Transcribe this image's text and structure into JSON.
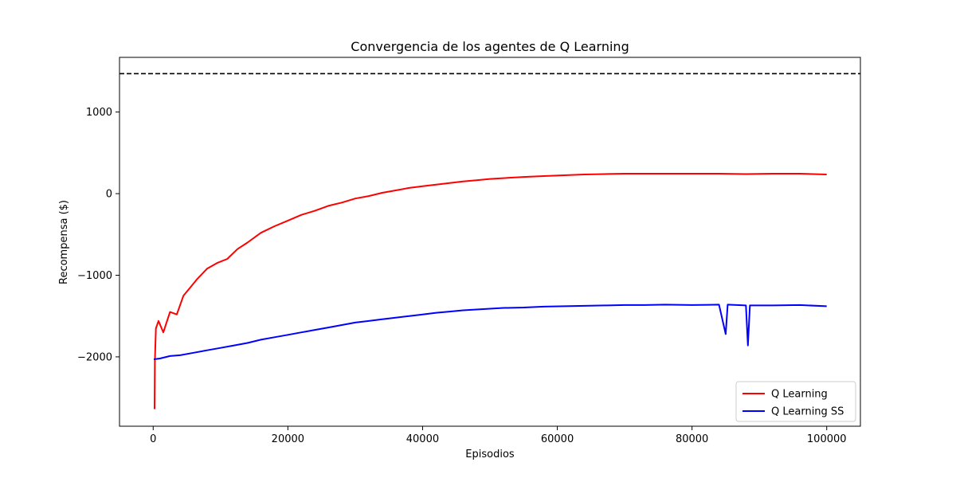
{
  "chart_data": {
    "type": "line",
    "title": "Convergencia de los agentes de Q Learning",
    "xlabel": "Episodios",
    "ylabel": "Recompensa ($)",
    "xlim": [
      -5000,
      105000
    ],
    "ylim": [
      -2850,
      1670
    ],
    "xticks": [
      0,
      20000,
      40000,
      60000,
      80000,
      100000
    ],
    "xtick_labels": [
      "0",
      "20000",
      "40000",
      "60000",
      "80000",
      "100000"
    ],
    "yticks": [
      -2000,
      -1000,
      0,
      1000
    ],
    "ytick_labels": [
      "−2000",
      "−1000",
      "0",
      "1000"
    ],
    "grid": false,
    "legend": "lower-right",
    "reference_line": {
      "y": 1470,
      "style": "dashed",
      "color": "#000000"
    },
    "series": [
      {
        "name": "Q Learning",
        "color": "#ff0000",
        "points": [
          [
            200,
            -2640
          ],
          [
            250,
            -2050
          ],
          [
            400,
            -1650
          ],
          [
            800,
            -1560
          ],
          [
            1500,
            -1700
          ],
          [
            2500,
            -1450
          ],
          [
            3500,
            -1480
          ],
          [
            4500,
            -1250
          ],
          [
            5500,
            -1150
          ],
          [
            6500,
            -1050
          ],
          [
            8000,
            -920
          ],
          [
            9500,
            -850
          ],
          [
            11000,
            -800
          ],
          [
            12500,
            -680
          ],
          [
            14000,
            -600
          ],
          [
            16000,
            -480
          ],
          [
            18000,
            -400
          ],
          [
            20000,
            -330
          ],
          [
            22000,
            -260
          ],
          [
            24000,
            -210
          ],
          [
            26000,
            -150
          ],
          [
            28000,
            -110
          ],
          [
            30000,
            -60
          ],
          [
            32000,
            -30
          ],
          [
            34000,
            10
          ],
          [
            36000,
            40
          ],
          [
            38000,
            70
          ],
          [
            40000,
            90
          ],
          [
            42000,
            110
          ],
          [
            44000,
            130
          ],
          [
            46000,
            150
          ],
          [
            48000,
            165
          ],
          [
            50000,
            180
          ],
          [
            52000,
            190
          ],
          [
            55000,
            205
          ],
          [
            58000,
            215
          ],
          [
            61000,
            225
          ],
          [
            64000,
            235
          ],
          [
            67000,
            240
          ],
          [
            70000,
            245
          ],
          [
            73000,
            245
          ],
          [
            76000,
            245
          ],
          [
            80000,
            245
          ],
          [
            84000,
            245
          ],
          [
            88000,
            240
          ],
          [
            92000,
            245
          ],
          [
            96000,
            245
          ],
          [
            100000,
            235
          ]
        ]
      },
      {
        "name": "Q Learning SS",
        "color": "#0000ff",
        "points": [
          [
            100,
            -2030
          ],
          [
            1000,
            -2020
          ],
          [
            2500,
            -1990
          ],
          [
            4000,
            -1980
          ],
          [
            6000,
            -1950
          ],
          [
            8000,
            -1920
          ],
          [
            10000,
            -1890
          ],
          [
            12000,
            -1860
          ],
          [
            14000,
            -1830
          ],
          [
            16000,
            -1790
          ],
          [
            18000,
            -1760
          ],
          [
            20000,
            -1730
          ],
          [
            22000,
            -1700
          ],
          [
            24000,
            -1670
          ],
          [
            26000,
            -1640
          ],
          [
            28000,
            -1610
          ],
          [
            30000,
            -1580
          ],
          [
            32000,
            -1560
          ],
          [
            34000,
            -1540
          ],
          [
            36000,
            -1520
          ],
          [
            38000,
            -1500
          ],
          [
            40000,
            -1480
          ],
          [
            42000,
            -1460
          ],
          [
            44000,
            -1445
          ],
          [
            46000,
            -1430
          ],
          [
            48000,
            -1420
          ],
          [
            50000,
            -1410
          ],
          [
            52000,
            -1400
          ],
          [
            55000,
            -1395
          ],
          [
            58000,
            -1385
          ],
          [
            61000,
            -1380
          ],
          [
            64000,
            -1375
          ],
          [
            67000,
            -1370
          ],
          [
            70000,
            -1365
          ],
          [
            73000,
            -1365
          ],
          [
            76000,
            -1360
          ],
          [
            80000,
            -1365
          ],
          [
            84000,
            -1360
          ],
          [
            85000,
            -1720
          ],
          [
            85300,
            -1360
          ],
          [
            88000,
            -1370
          ],
          [
            88300,
            -1860
          ],
          [
            88600,
            -1370
          ],
          [
            92000,
            -1370
          ],
          [
            96000,
            -1365
          ],
          [
            100000,
            -1380
          ]
        ]
      }
    ]
  }
}
